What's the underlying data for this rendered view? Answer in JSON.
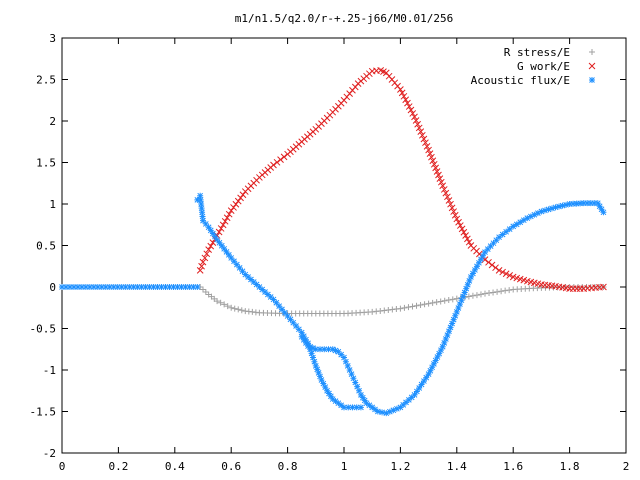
{
  "chart_data": {
    "type": "scatter",
    "title": "m1/n1.5/q2.0/r-+.25-j66/M0.01/256",
    "xlabel": "",
    "ylabel": "",
    "xlim": [
      0,
      2
    ],
    "ylim": [
      -2,
      3
    ],
    "x_ticks": [
      "0",
      "0.2",
      "0.4",
      "0.6",
      "0.8",
      "1",
      "1.2",
      "1.4",
      "1.6",
      "1.8",
      "2"
    ],
    "y_ticks": [
      "-2",
      "-1.5",
      "-1",
      "-0.5",
      "0",
      "0.5",
      "1",
      "1.5",
      "2",
      "2.5",
      "3"
    ],
    "grid": false,
    "legend_position": "top-right",
    "series": [
      {
        "name": "R stress/E",
        "color": "#a0a0a0",
        "marker": "plus",
        "points": [
          [
            0.49,
            0.0
          ],
          [
            0.52,
            -0.09
          ],
          [
            0.55,
            -0.17
          ],
          [
            0.6,
            -0.25
          ],
          [
            0.65,
            -0.29
          ],
          [
            0.7,
            -0.31
          ],
          [
            0.8,
            -0.32
          ],
          [
            0.9,
            -0.32
          ],
          [
            1.0,
            -0.32
          ],
          [
            1.1,
            -0.3
          ],
          [
            1.2,
            -0.26
          ],
          [
            1.3,
            -0.2
          ],
          [
            1.4,
            -0.14
          ],
          [
            1.5,
            -0.08
          ],
          [
            1.6,
            -0.03
          ],
          [
            1.7,
            -0.01
          ],
          [
            1.8,
            0.0
          ],
          [
            1.92,
            0.0
          ]
        ]
      },
      {
        "name": "G work/E",
        "color": "#e02020",
        "marker": "cross",
        "points": [
          [
            0.49,
            0.2
          ],
          [
            0.5,
            0.3
          ],
          [
            0.52,
            0.45
          ],
          [
            0.55,
            0.62
          ],
          [
            0.6,
            0.92
          ],
          [
            0.65,
            1.15
          ],
          [
            0.7,
            1.32
          ],
          [
            0.75,
            1.47
          ],
          [
            0.8,
            1.6
          ],
          [
            0.85,
            1.75
          ],
          [
            0.9,
            1.9
          ],
          [
            0.95,
            2.07
          ],
          [
            1.0,
            2.25
          ],
          [
            1.05,
            2.45
          ],
          [
            1.1,
            2.6
          ],
          [
            1.13,
            2.61
          ],
          [
            1.15,
            2.58
          ],
          [
            1.2,
            2.38
          ],
          [
            1.25,
            2.05
          ],
          [
            1.3,
            1.65
          ],
          [
            1.35,
            1.22
          ],
          [
            1.4,
            0.82
          ],
          [
            1.45,
            0.5
          ],
          [
            1.5,
            0.33
          ],
          [
            1.55,
            0.2
          ],
          [
            1.6,
            0.12
          ],
          [
            1.65,
            0.07
          ],
          [
            1.7,
            0.03
          ],
          [
            1.75,
            0.01
          ],
          [
            1.8,
            -0.02
          ],
          [
            1.85,
            -0.02
          ],
          [
            1.92,
            0.0
          ]
        ]
      },
      {
        "name": "Acoustic flux/E",
        "color": "#1e90ff",
        "marker": "star",
        "flat_segment": {
          "x_start": 0.0,
          "x_end": 0.48,
          "y": 0.0
        },
        "points": [
          [
            0.48,
            1.05
          ],
          [
            0.49,
            1.1
          ],
          [
            0.5,
            0.8
          ],
          [
            0.52,
            0.72
          ],
          [
            0.55,
            0.57
          ],
          [
            0.6,
            0.35
          ],
          [
            0.65,
            0.15
          ],
          [
            0.7,
            0.0
          ],
          [
            0.75,
            -0.15
          ],
          [
            0.8,
            -0.35
          ],
          [
            0.85,
            -0.55
          ],
          [
            0.88,
            -0.72
          ],
          [
            0.9,
            -0.75
          ],
          [
            0.93,
            -0.75
          ],
          [
            0.96,
            -0.75
          ],
          [
            0.98,
            -0.78
          ],
          [
            1.0,
            -0.85
          ],
          [
            1.02,
            -1.0
          ],
          [
            1.04,
            -1.15
          ],
          [
            1.06,
            -1.3
          ],
          [
            1.08,
            -1.4
          ],
          [
            1.1,
            -1.45
          ],
          [
            1.12,
            -1.5
          ],
          [
            1.15,
            -1.52
          ],
          [
            1.2,
            -1.45
          ],
          [
            1.25,
            -1.3
          ],
          [
            1.3,
            -1.05
          ],
          [
            1.35,
            -0.72
          ],
          [
            1.4,
            -0.3
          ],
          [
            1.45,
            0.12
          ],
          [
            1.5,
            0.42
          ],
          [
            1.55,
            0.6
          ],
          [
            1.6,
            0.73
          ],
          [
            1.65,
            0.83
          ],
          [
            1.7,
            0.91
          ],
          [
            1.75,
            0.96
          ],
          [
            1.8,
            1.0
          ],
          [
            1.85,
            1.01
          ],
          [
            1.9,
            1.01
          ],
          [
            1.92,
            0.9
          ]
        ],
        "lower_branch": [
          [
            0.85,
            -0.6
          ],
          [
            0.88,
            -0.75
          ],
          [
            0.9,
            -0.95
          ],
          [
            0.92,
            -1.12
          ],
          [
            0.94,
            -1.25
          ],
          [
            0.96,
            -1.35
          ],
          [
            0.98,
            -1.4
          ],
          [
            1.0,
            -1.45
          ],
          [
            1.03,
            -1.45
          ],
          [
            1.06,
            -1.45
          ]
        ]
      }
    ]
  }
}
